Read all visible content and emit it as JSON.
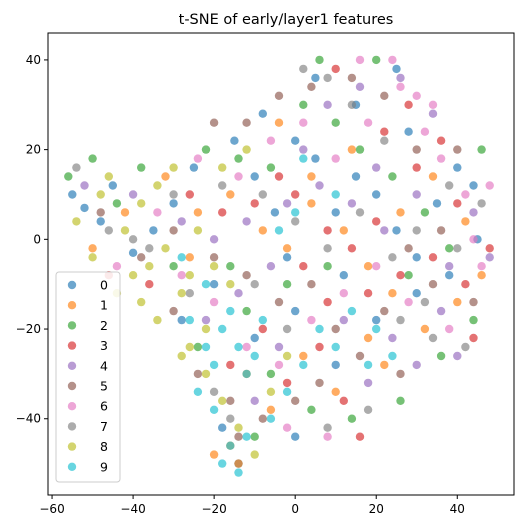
{
  "chart_data": {
    "type": "scatter",
    "title": "t-SNE of early/layer1 features",
    "xlabel": "",
    "ylabel": "",
    "xlim": [
      -61,
      54
    ],
    "ylim": [
      -57,
      46
    ],
    "xticks": [
      -60,
      -40,
      -20,
      0,
      20,
      40
    ],
    "yticks": [
      -40,
      -20,
      0,
      20,
      40
    ],
    "grid": false,
    "legend_position": "lower-left",
    "marker_alpha": 0.65,
    "series": [
      {
        "name": "0",
        "color": "#1f77b4",
        "points": [
          [
            -55,
            10
          ],
          [
            -52,
            7
          ],
          [
            -48,
            4
          ],
          [
            -45,
            12
          ],
          [
            -40,
            -3
          ],
          [
            -30,
            8
          ],
          [
            -25,
            16
          ],
          [
            -15,
            22
          ],
          [
            -10,
            14
          ],
          [
            -5,
            6
          ],
          [
            0,
            22
          ],
          [
            5,
            18
          ],
          [
            10,
            6
          ],
          [
            15,
            14
          ],
          [
            20,
            10
          ],
          [
            25,
            2
          ],
          [
            30,
            -4
          ],
          [
            35,
            8
          ],
          [
            40,
            16
          ],
          [
            45,
            0
          ],
          [
            -20,
            -10
          ],
          [
            -10,
            -22
          ],
          [
            0,
            -16
          ],
          [
            10,
            -28
          ],
          [
            20,
            -18
          ],
          [
            30,
            -12
          ],
          [
            5,
            36
          ],
          [
            15,
            30
          ],
          [
            25,
            38
          ],
          [
            -35,
            2
          ],
          [
            -28,
            -18
          ],
          [
            -18,
            -42
          ],
          [
            -14,
            -50
          ],
          [
            0,
            -44
          ],
          [
            38,
            -8
          ],
          [
            44,
            12
          ],
          [
            -8,
            28
          ],
          [
            12,
            -8
          ],
          [
            -2,
            -4
          ],
          [
            28,
            24
          ]
        ]
      },
      {
        "name": "1",
        "color": "#ff7f0e",
        "points": [
          [
            -50,
            -2
          ],
          [
            -42,
            6
          ],
          [
            -32,
            14
          ],
          [
            -24,
            6
          ],
          [
            -16,
            10
          ],
          [
            -8,
            2
          ],
          [
            -2,
            -2
          ],
          [
            4,
            8
          ],
          [
            12,
            2
          ],
          [
            18,
            -6
          ],
          [
            26,
            6
          ],
          [
            34,
            14
          ],
          [
            42,
            4
          ],
          [
            46,
            -8
          ],
          [
            -12,
            -30
          ],
          [
            -6,
            -38
          ],
          [
            2,
            -26
          ],
          [
            10,
            -34
          ],
          [
            18,
            -22
          ],
          [
            24,
            -12
          ],
          [
            -16,
            -46
          ],
          [
            -14,
            -50
          ],
          [
            -20,
            -48
          ],
          [
            -4,
            26
          ],
          [
            4,
            14
          ],
          [
            14,
            20
          ],
          [
            32,
            -20
          ],
          [
            40,
            -14
          ],
          [
            22,
            -28
          ],
          [
            -26,
            -4
          ]
        ]
      },
      {
        "name": "2",
        "color": "#2ca02c",
        "points": [
          [
            -56,
            14
          ],
          [
            -50,
            18
          ],
          [
            -44,
            8
          ],
          [
            -38,
            16
          ],
          [
            -30,
            -6
          ],
          [
            -22,
            20
          ],
          [
            -14,
            18
          ],
          [
            -6,
            16
          ],
          [
            2,
            30
          ],
          [
            6,
            40
          ],
          [
            10,
            26
          ],
          [
            16,
            20
          ],
          [
            24,
            14
          ],
          [
            32,
            6
          ],
          [
            38,
            -2
          ],
          [
            46,
            20
          ],
          [
            44,
            -18
          ],
          [
            36,
            -26
          ],
          [
            26,
            -36
          ],
          [
            14,
            -40
          ],
          [
            4,
            -38
          ],
          [
            -6,
            -30
          ],
          [
            -16,
            -6
          ],
          [
            -24,
            -24
          ],
          [
            -12,
            -16
          ],
          [
            20,
            40
          ],
          [
            -2,
            -10
          ],
          [
            28,
            -8
          ],
          [
            8,
            -6
          ],
          [
            -10,
            -44
          ]
        ]
      },
      {
        "name": "3",
        "color": "#d62728",
        "points": [
          [
            -46,
            -8
          ],
          [
            -36,
            -10
          ],
          [
            -26,
            10
          ],
          [
            -18,
            6
          ],
          [
            -10,
            8
          ],
          [
            -4,
            14
          ],
          [
            2,
            -6
          ],
          [
            8,
            -14
          ],
          [
            14,
            -2
          ],
          [
            20,
            4
          ],
          [
            26,
            -8
          ],
          [
            34,
            -4
          ],
          [
            42,
            -10
          ],
          [
            48,
            -2
          ],
          [
            6,
            -24
          ],
          [
            12,
            -36
          ],
          [
            18,
            -12
          ],
          [
            22,
            24
          ],
          [
            28,
            30
          ],
          [
            10,
            38
          ],
          [
            -2,
            -32
          ],
          [
            30,
            16
          ],
          [
            36,
            22
          ],
          [
            -16,
            -28
          ],
          [
            0,
            10
          ],
          [
            8,
            2
          ],
          [
            -8,
            -20
          ],
          [
            40,
            8
          ],
          [
            44,
            -22
          ],
          [
            16,
            -44
          ]
        ]
      },
      {
        "name": "4",
        "color": "#9467bd",
        "points": [
          [
            -52,
            12
          ],
          [
            -40,
            10
          ],
          [
            -28,
            4
          ],
          [
            -20,
            0
          ],
          [
            -12,
            4
          ],
          [
            -2,
            8
          ],
          [
            6,
            12
          ],
          [
            14,
            8
          ],
          [
            22,
            2
          ],
          [
            30,
            10
          ],
          [
            38,
            -6
          ],
          [
            44,
            6
          ],
          [
            48,
            -4
          ],
          [
            34,
            28
          ],
          [
            26,
            36
          ],
          [
            16,
            34
          ],
          [
            8,
            30
          ],
          [
            2,
            20
          ],
          [
            -6,
            -6
          ],
          [
            -14,
            -12
          ],
          [
            -22,
            -18
          ],
          [
            12,
            -18
          ],
          [
            24,
            -22
          ],
          [
            36,
            -16
          ],
          [
            30,
            -28
          ],
          [
            18,
            -32
          ],
          [
            -4,
            -24
          ],
          [
            -10,
            -36
          ],
          [
            40,
            -26
          ],
          [
            20,
            16
          ]
        ]
      },
      {
        "name": "5",
        "color": "#8c564b",
        "points": [
          [
            -48,
            6
          ],
          [
            -38,
            -4
          ],
          [
            -30,
            2
          ],
          [
            -20,
            -4
          ],
          [
            -12,
            -8
          ],
          [
            -4,
            -14
          ],
          [
            4,
            -10
          ],
          [
            10,
            -20
          ],
          [
            16,
            -26
          ],
          [
            22,
            -16
          ],
          [
            28,
            -2
          ],
          [
            36,
            2
          ],
          [
            44,
            -14
          ],
          [
            40,
            20
          ],
          [
            30,
            20
          ],
          [
            22,
            32
          ],
          [
            14,
            36
          ],
          [
            4,
            34
          ],
          [
            -4,
            32
          ],
          [
            -12,
            26
          ],
          [
            -20,
            26
          ],
          [
            -16,
            -36
          ],
          [
            -14,
            -44
          ],
          [
            -8,
            -40
          ],
          [
            0,
            -36
          ],
          [
            6,
            -32
          ],
          [
            -30,
            -16
          ],
          [
            -24,
            -30
          ],
          [
            26,
            -30
          ],
          [
            34,
            -10
          ]
        ]
      },
      {
        "name": "6",
        "color": "#e377c2",
        "points": [
          [
            -44,
            -6
          ],
          [
            -34,
            6
          ],
          [
            -24,
            18
          ],
          [
            -14,
            14
          ],
          [
            -6,
            22
          ],
          [
            2,
            26
          ],
          [
            10,
            18
          ],
          [
            18,
            26
          ],
          [
            26,
            34
          ],
          [
            32,
            24
          ],
          [
            36,
            18
          ],
          [
            42,
            10
          ],
          [
            48,
            12
          ],
          [
            46,
            -6
          ],
          [
            38,
            -20
          ],
          [
            28,
            -14
          ],
          [
            20,
            -6
          ],
          [
            12,
            -12
          ],
          [
            4,
            -18
          ],
          [
            -4,
            -28
          ],
          [
            -12,
            -24
          ],
          [
            -20,
            -14
          ],
          [
            -28,
            -8
          ],
          [
            24,
            40
          ],
          [
            16,
            40
          ],
          [
            30,
            32
          ],
          [
            34,
            30
          ],
          [
            -2,
            -42
          ],
          [
            8,
            -44
          ],
          [
            44,
            0
          ]
        ]
      },
      {
        "name": "7",
        "color": "#7f7f7f",
        "points": [
          [
            -54,
            16
          ],
          [
            -46,
            2
          ],
          [
            -36,
            -2
          ],
          [
            -26,
            -12
          ],
          [
            -18,
            12
          ],
          [
            -8,
            10
          ],
          [
            0,
            4
          ],
          [
            8,
            -2
          ],
          [
            16,
            6
          ],
          [
            24,
            -4
          ],
          [
            32,
            -14
          ],
          [
            40,
            -2
          ],
          [
            46,
            8
          ],
          [
            42,
            -24
          ],
          [
            34,
            -22
          ],
          [
            26,
            -18
          ],
          [
            18,
            -38
          ],
          [
            8,
            -42
          ],
          [
            -2,
            -20
          ],
          [
            -10,
            -10
          ],
          [
            -20,
            -34
          ],
          [
            -16,
            -40
          ],
          [
            14,
            30
          ],
          [
            22,
            22
          ],
          [
            30,
            2
          ],
          [
            38,
            12
          ],
          [
            2,
            38
          ],
          [
            8,
            36
          ],
          [
            -30,
            10
          ],
          [
            -40,
            0
          ]
        ]
      },
      {
        "name": "8",
        "color": "#bcbd22",
        "points": [
          [
            -54,
            4
          ],
          [
            -50,
            -4
          ],
          [
            -46,
            14
          ],
          [
            -42,
            2
          ],
          [
            -40,
            -8
          ],
          [
            -38,
            8
          ],
          [
            -36,
            -6
          ],
          [
            -34,
            12
          ],
          [
            -32,
            -2
          ],
          [
            -30,
            16
          ],
          [
            -28,
            -12
          ],
          [
            -26,
            -8
          ],
          [
            -24,
            2
          ],
          [
            -22,
            -20
          ],
          [
            -20,
            -6
          ],
          [
            -18,
            16
          ],
          [
            -16,
            -10
          ],
          [
            -34,
            -18
          ],
          [
            -28,
            -26
          ],
          [
            -22,
            -30
          ],
          [
            -18,
            -36
          ],
          [
            -14,
            -42
          ],
          [
            -10,
            -48
          ],
          [
            -6,
            -34
          ],
          [
            -2,
            -26
          ],
          [
            -44,
            -12
          ],
          [
            -48,
            10
          ],
          [
            -38,
            -14
          ],
          [
            -26,
            -24
          ],
          [
            -12,
            20
          ]
        ]
      },
      {
        "name": "9",
        "color": "#17becf",
        "points": [
          [
            -26,
            -18
          ],
          [
            -22,
            -24
          ],
          [
            -20,
            -28
          ],
          [
            -18,
            -20
          ],
          [
            -16,
            -16
          ],
          [
            -14,
            -24
          ],
          [
            -12,
            -30
          ],
          [
            -10,
            -26
          ],
          [
            -8,
            -18
          ],
          [
            -24,
            -34
          ],
          [
            -20,
            -38
          ],
          [
            -16,
            -46
          ],
          [
            -14,
            -52
          ],
          [
            -18,
            -50
          ],
          [
            -12,
            -44
          ],
          [
            -6,
            -40
          ],
          [
            -2,
            -34
          ],
          [
            2,
            -28
          ],
          [
            6,
            -20
          ],
          [
            10,
            -24
          ],
          [
            14,
            -16
          ],
          [
            18,
            -28
          ],
          [
            24,
            -26
          ],
          [
            20,
            -20
          ],
          [
            -28,
            -4
          ],
          [
            -22,
            -10
          ],
          [
            2,
            18
          ],
          [
            -4,
            2
          ],
          [
            0,
            6
          ],
          [
            10,
            10
          ]
        ]
      }
    ]
  }
}
